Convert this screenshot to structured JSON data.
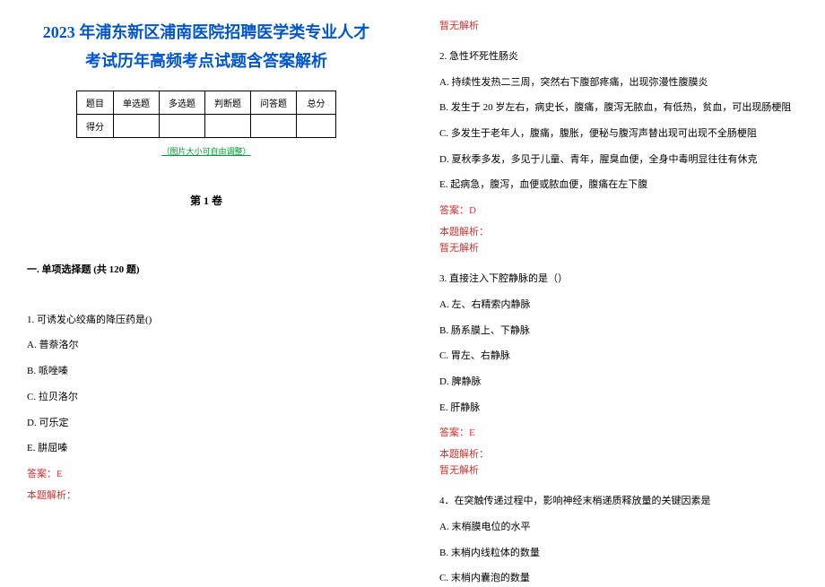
{
  "title_line1": "2023 年浦东新区浦南医院招聘医学类专业人才",
  "title_line2": "考试历年高频考点试题含答案解析",
  "table": {
    "headers": [
      "题目",
      "单选题",
      "多选题",
      "判断题",
      "问答题",
      "总分"
    ],
    "row_label": "得分"
  },
  "zoom_hint": "（图片大小可自由调整）",
  "volume": "第 1 卷",
  "section": "一. 单项选择题 (共 120 题)",
  "q1": {
    "stem": "1. 可诱发心绞痛的降压药是()",
    "A": "A. 普萘洛尔",
    "B": "B. 哌唑嗪",
    "C": "C. 拉贝洛尔",
    "D": "D. 可乐定",
    "E": "E. 肼屈嗪",
    "answer": "答案：E",
    "analysis_label": "本题解析：",
    "analysis_none": "暂无解析"
  },
  "q2": {
    "stem": "2. 急性坏死性肠炎",
    "A": "A. 持续性发热二三周，突然右下腹部疼痛，出现弥漫性腹膜炎",
    "B": "B. 发生于 20 岁左右，病史长，腹痛，腹泻无脓血，有低热，贫血，可出现肠梗阻",
    "C": "C. 多发生于老年人，腹痛，腹胀，便秘与腹泻声替出现可出现不全肠梗阻",
    "D": "D. 夏秋季多发，多见于儿童、青年，腥臭血便，全身中毒明显往往有休克",
    "E": "E. 起病急，腹泻，血便或脓血便，腹痛在左下腹",
    "answer": "答案：D",
    "analysis_label": "本题解析：",
    "analysis_none": "暂无解析"
  },
  "q3": {
    "stem": "3. 直接注入下腔静脉的是（）",
    "A": "A. 左、右精索内静脉",
    "B": "B. 肠系膜上、下静脉",
    "C": "C. 胃左、右静脉",
    "D": "D. 脾静脉",
    "E": "E. 肝静脉",
    "answer": "答案：E",
    "analysis_label": "本题解析：",
    "analysis_none": "暂无解析"
  },
  "q4": {
    "stem": "4．在突触传递过程中，影响神经末梢递质释放量的关键因素是",
    "A": "A. 末梢膜电位的水平",
    "B": "B. 末梢内线粒体的数量",
    "C": "C. 末梢内囊泡的数量"
  },
  "colors": {
    "title": "#0055cc",
    "hint": "#009933",
    "answer": "#d43030",
    "text": "#000000"
  }
}
